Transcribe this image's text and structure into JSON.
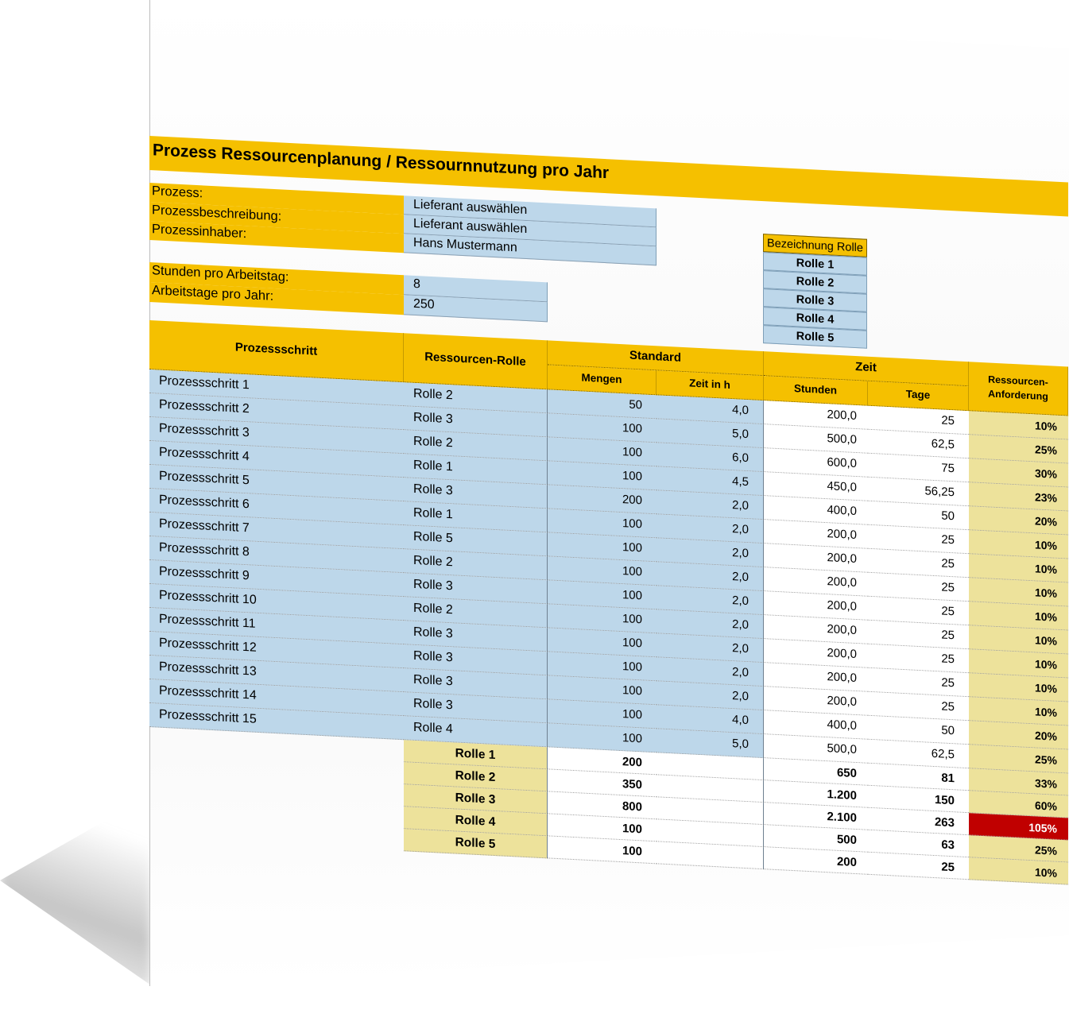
{
  "title": "Prozess Ressourcenplanung / Ressournnutzung pro Jahr",
  "info": [
    {
      "label": "Prozess:",
      "value": "Lieferant auswählen"
    },
    {
      "label": "Prozessbeschreibung:",
      "value": "Lieferant auswählen"
    },
    {
      "label": "Prozessinhaber:",
      "value": "Hans Mustermann"
    }
  ],
  "params": [
    {
      "label": "Stunden pro Arbeitstag:",
      "value": "8"
    },
    {
      "label": "Arbeitstage pro Jahr:",
      "value": "250"
    }
  ],
  "roles_box": {
    "header": "Bezeichnung Rolle",
    "items": [
      "Rolle 1",
      "Rolle 2",
      "Rolle 3",
      "Rolle 4",
      "Rolle 5"
    ]
  },
  "table_headers": {
    "prozessschritt": "Prozessschritt",
    "rolle": "Ressourcen-Rolle",
    "standard": "Standard",
    "mengen": "Mengen",
    "zeit_h": "Zeit in h",
    "zeit": "Zeit",
    "stunden": "Stunden",
    "tage": "Tage",
    "anforderung_1": "Ressourcen-",
    "anforderung_2": "Anforderung"
  },
  "rows": [
    {
      "schritt": "Prozessschritt 1",
      "rolle": "Rolle 2",
      "mengen": "50",
      "zeit_h": "4,0",
      "stunden": "200,0",
      "tage": "25",
      "anf": "10%"
    },
    {
      "schritt": "Prozessschritt 2",
      "rolle": "Rolle 3",
      "mengen": "100",
      "zeit_h": "5,0",
      "stunden": "500,0",
      "tage": "62,5",
      "anf": "25%"
    },
    {
      "schritt": "Prozessschritt 3",
      "rolle": "Rolle 2",
      "mengen": "100",
      "zeit_h": "6,0",
      "stunden": "600,0",
      "tage": "75",
      "anf": "30%"
    },
    {
      "schritt": "Prozessschritt 4",
      "rolle": "Rolle 1",
      "mengen": "100",
      "zeit_h": "4,5",
      "stunden": "450,0",
      "tage": "56,25",
      "anf": "23%"
    },
    {
      "schritt": "Prozessschritt 5",
      "rolle": "Rolle 3",
      "mengen": "200",
      "zeit_h": "2,0",
      "stunden": "400,0",
      "tage": "50",
      "anf": "20%"
    },
    {
      "schritt": "Prozessschritt 6",
      "rolle": "Rolle 1",
      "mengen": "100",
      "zeit_h": "2,0",
      "stunden": "200,0",
      "tage": "25",
      "anf": "10%"
    },
    {
      "schritt": "Prozessschritt 7",
      "rolle": "Rolle 5",
      "mengen": "100",
      "zeit_h": "2,0",
      "stunden": "200,0",
      "tage": "25",
      "anf": "10%"
    },
    {
      "schritt": "Prozessschritt 8",
      "rolle": "Rolle 2",
      "mengen": "100",
      "zeit_h": "2,0",
      "stunden": "200,0",
      "tage": "25",
      "anf": "10%"
    },
    {
      "schritt": "Prozessschritt 9",
      "rolle": "Rolle 3",
      "mengen": "100",
      "zeit_h": "2,0",
      "stunden": "200,0",
      "tage": "25",
      "anf": "10%"
    },
    {
      "schritt": "Prozessschritt 10",
      "rolle": "Rolle 2",
      "mengen": "100",
      "zeit_h": "2,0",
      "stunden": "200,0",
      "tage": "25",
      "anf": "10%"
    },
    {
      "schritt": "Prozessschritt 11",
      "rolle": "Rolle 3",
      "mengen": "100",
      "zeit_h": "2,0",
      "stunden": "200,0",
      "tage": "25",
      "anf": "10%"
    },
    {
      "schritt": "Prozessschritt 12",
      "rolle": "Rolle 3",
      "mengen": "100",
      "zeit_h": "2,0",
      "stunden": "200,0",
      "tage": "25",
      "anf": "10%"
    },
    {
      "schritt": "Prozessschritt 13",
      "rolle": "Rolle 3",
      "mengen": "100",
      "zeit_h": "2,0",
      "stunden": "200,0",
      "tage": "25",
      "anf": "10%"
    },
    {
      "schritt": "Prozessschritt 14",
      "rolle": "Rolle 3",
      "mengen": "100",
      "zeit_h": "4,0",
      "stunden": "400,0",
      "tage": "50",
      "anf": "20%"
    },
    {
      "schritt": "Prozessschritt 15",
      "rolle": "Rolle 4",
      "mengen": "100",
      "zeit_h": "5,0",
      "stunden": "500,0",
      "tage": "62,5",
      "anf": "25%"
    }
  ],
  "summary": [
    {
      "rolle": "Rolle 1",
      "mengen": "200",
      "stunden": "650",
      "tage": "81",
      "anf": "33%",
      "over": false
    },
    {
      "rolle": "Rolle 2",
      "mengen": "350",
      "stunden": "1.200",
      "tage": "150",
      "anf": "60%",
      "over": false
    },
    {
      "rolle": "Rolle 3",
      "mengen": "800",
      "stunden": "2.100",
      "tage": "263",
      "anf": "105%",
      "over": true
    },
    {
      "rolle": "Rolle 4",
      "mengen": "100",
      "stunden": "500",
      "tage": "63",
      "anf": "25%",
      "over": false
    },
    {
      "rolle": "Rolle 5",
      "mengen": "100",
      "stunden": "200",
      "tage": "25",
      "anf": "10%",
      "over": false
    }
  ],
  "colors": {
    "accent": "#f5c000",
    "input_blue": "#bdd7ea",
    "summary_gold": "#ede29b",
    "alert_red": "#c00000"
  }
}
